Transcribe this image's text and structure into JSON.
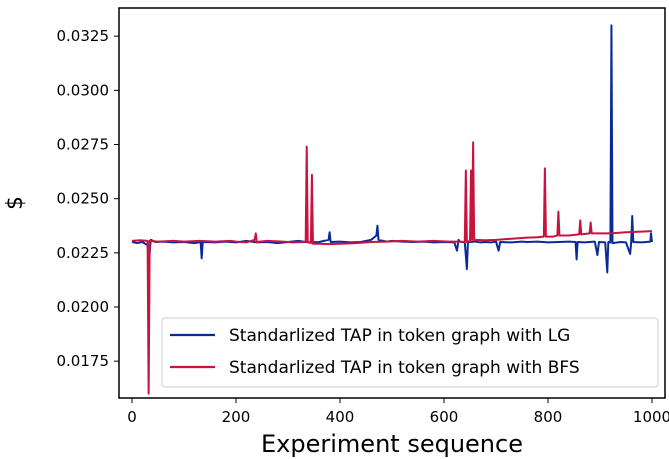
{
  "chart_data": {
    "type": "line",
    "title": "",
    "xlabel": "Experiment sequence",
    "ylabel": "$",
    "xlim": [
      -25,
      1025
    ],
    "ylim": [
      0.0158,
      0.0338
    ],
    "xticks": [
      0,
      200,
      400,
      600,
      800,
      1000
    ],
    "xtick_labels": [
      "0",
      "200",
      "400",
      "600",
      "800",
      "1000"
    ],
    "yticks": [
      0.0175,
      0.02,
      0.0225,
      0.025,
      0.0275,
      0.03,
      0.0325
    ],
    "ytick_labels": [
      "0.0175",
      "0.0200",
      "0.0225",
      "0.0250",
      "0.0275",
      "0.0300",
      "0.0325"
    ],
    "grid": false,
    "legend_position": "lower-right",
    "series": [
      {
        "name": "Standarlized TAP in token graph with LG",
        "color": "#0a2a9c",
        "baseline": 0.02298,
        "points": [
          [
            0,
            0.023
          ],
          [
            10,
            0.02295
          ],
          [
            20,
            0.023
          ],
          [
            30,
            0.02285
          ],
          [
            33,
            0.0222
          ],
          [
            36,
            0.0231
          ],
          [
            45,
            0.023
          ],
          [
            60,
            0.02302
          ],
          [
            80,
            0.02298
          ],
          [
            100,
            0.023
          ],
          [
            120,
            0.02295
          ],
          [
            132,
            0.023
          ],
          [
            134,
            0.02225
          ],
          [
            136,
            0.023
          ],
          [
            160,
            0.02298
          ],
          [
            180,
            0.02302
          ],
          [
            200,
            0.02298
          ],
          [
            220,
            0.02305
          ],
          [
            240,
            0.02298
          ],
          [
            260,
            0.023
          ],
          [
            280,
            0.02295
          ],
          [
            300,
            0.023
          ],
          [
            320,
            0.02305
          ],
          [
            340,
            0.02298
          ],
          [
            360,
            0.023
          ],
          [
            378,
            0.0231
          ],
          [
            380,
            0.02345
          ],
          [
            382,
            0.023
          ],
          [
            400,
            0.02302
          ],
          [
            420,
            0.02298
          ],
          [
            440,
            0.023
          ],
          [
            460,
            0.0231
          ],
          [
            470,
            0.0233
          ],
          [
            472,
            0.02375
          ],
          [
            474,
            0.0231
          ],
          [
            490,
            0.02302
          ],
          [
            500,
            0.02305
          ],
          [
            520,
            0.02302
          ],
          [
            540,
            0.023
          ],
          [
            560,
            0.02302
          ],
          [
            580,
            0.02298
          ],
          [
            600,
            0.023
          ],
          [
            620,
            0.02298
          ],
          [
            625,
            0.0226
          ],
          [
            628,
            0.0231
          ],
          [
            630,
            0.02302
          ],
          [
            640,
            0.02298
          ],
          [
            644,
            0.02175
          ],
          [
            646,
            0.023
          ],
          [
            660,
            0.02302
          ],
          [
            670,
            0.02298
          ],
          [
            680,
            0.023
          ],
          [
            690,
            0.02298
          ],
          [
            700,
            0.02302
          ],
          [
            705,
            0.0226
          ],
          [
            708,
            0.023
          ],
          [
            730,
            0.02298
          ],
          [
            750,
            0.02302
          ],
          [
            760,
            0.023
          ],
          [
            780,
            0.02302
          ],
          [
            800,
            0.02298
          ],
          [
            820,
            0.023
          ],
          [
            840,
            0.02302
          ],
          [
            853,
            0.023
          ],
          [
            855,
            0.0222
          ],
          [
            857,
            0.023
          ],
          [
            870,
            0.02298
          ],
          [
            890,
            0.02302
          ],
          [
            895,
            0.0224
          ],
          [
            898,
            0.023
          ],
          [
            910,
            0.02298
          ],
          [
            914,
            0.0216
          ],
          [
            916,
            0.023
          ],
          [
            920,
            0.02298
          ],
          [
            922,
            0.033
          ],
          [
            924,
            0.02295
          ],
          [
            940,
            0.023
          ],
          [
            950,
            0.02298
          ],
          [
            958,
            0.02245
          ],
          [
            960,
            0.023
          ],
          [
            962,
            0.0242
          ],
          [
            964,
            0.023
          ],
          [
            980,
            0.02298
          ],
          [
            997,
            0.02302
          ],
          [
            998,
            0.0234
          ],
          [
            1000,
            0.023
          ]
        ]
      },
      {
        "name": "Standarlized TAP in token graph with BFS",
        "color": "#c8133f",
        "points": [
          [
            0,
            0.02305
          ],
          [
            15,
            0.02308
          ],
          [
            30,
            0.02305
          ],
          [
            32,
            0.016
          ],
          [
            34,
            0.02305
          ],
          [
            50,
            0.02302
          ],
          [
            80,
            0.02305
          ],
          [
            100,
            0.02302
          ],
          [
            130,
            0.02305
          ],
          [
            160,
            0.02302
          ],
          [
            190,
            0.02305
          ],
          [
            200,
            0.02302
          ],
          [
            220,
            0.02298
          ],
          [
            236,
            0.0231
          ],
          [
            238,
            0.0234
          ],
          [
            240,
            0.023
          ],
          [
            260,
            0.02305
          ],
          [
            290,
            0.02302
          ],
          [
            310,
            0.02298
          ],
          [
            334,
            0.023
          ],
          [
            336,
            0.0274
          ],
          [
            338,
            0.023
          ],
          [
            344,
            0.02295
          ],
          [
            346,
            0.0261
          ],
          [
            348,
            0.02292
          ],
          [
            360,
            0.02292
          ],
          [
            380,
            0.0229
          ],
          [
            400,
            0.02292
          ],
          [
            430,
            0.02295
          ],
          [
            460,
            0.023
          ],
          [
            490,
            0.02302
          ],
          [
            520,
            0.02305
          ],
          [
            550,
            0.02302
          ],
          [
            580,
            0.02305
          ],
          [
            610,
            0.02302
          ],
          [
            630,
            0.02302
          ],
          [
            640,
            0.023
          ],
          [
            642,
            0.0263
          ],
          [
            644,
            0.023
          ],
          [
            650,
            0.02305
          ],
          [
            652,
            0.0263
          ],
          [
            654,
            0.0231
          ],
          [
            656,
            0.0276
          ],
          [
            658,
            0.0231
          ],
          [
            680,
            0.02308
          ],
          [
            700,
            0.0231
          ],
          [
            730,
            0.02315
          ],
          [
            760,
            0.0232
          ],
          [
            780,
            0.02322
          ],
          [
            792,
            0.02325
          ],
          [
            794,
            0.0264
          ],
          [
            796,
            0.02325
          ],
          [
            810,
            0.02325
          ],
          [
            818,
            0.0233
          ],
          [
            820,
            0.0244
          ],
          [
            822,
            0.0233
          ],
          [
            840,
            0.0233
          ],
          [
            860,
            0.02335
          ],
          [
            862,
            0.024
          ],
          [
            864,
            0.02335
          ],
          [
            880,
            0.0234
          ],
          [
            882,
            0.0239
          ],
          [
            884,
            0.0234
          ],
          [
            920,
            0.0234
          ],
          [
            950,
            0.02345
          ],
          [
            980,
            0.02348
          ],
          [
            1000,
            0.0235
          ]
        ]
      }
    ]
  }
}
